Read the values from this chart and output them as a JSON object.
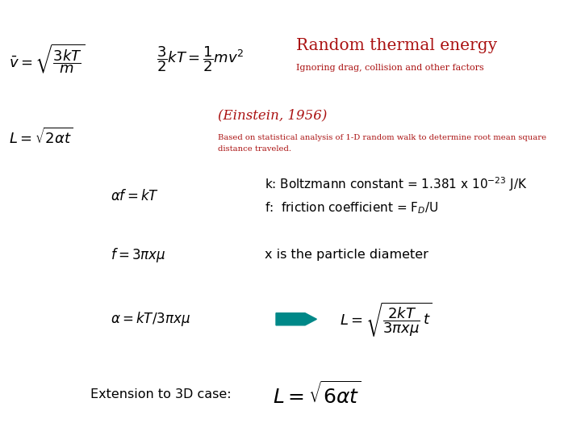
{
  "bg_color": "#ffffff",
  "title": "Random thermal energy",
  "subtitle": "Ignoring drag, collision and other factors",
  "title_color": "#aa1111",
  "subtitle_color": "#aa1111",
  "einstein_text": "(Einstein, 1956)",
  "einstein_color": "#aa1111",
  "based_on_line1": "Based on statistical analysis of 1-D random walk to determine root mean square",
  "based_on_line2": "distance traveled.",
  "based_on_color": "#aa1111",
  "k_line1": "k: Boltzmann constant = 1.381 x 10$^{-23}$ J/K",
  "k_line2": "f:  friction coefficient = F$_D$/U",
  "x_diameter": "x is the particle diameter",
  "ext_text": "Extension to 3D case:",
  "arrow_color": "#008888",
  "formula_color": "#000000",
  "text_color": "#000000"
}
